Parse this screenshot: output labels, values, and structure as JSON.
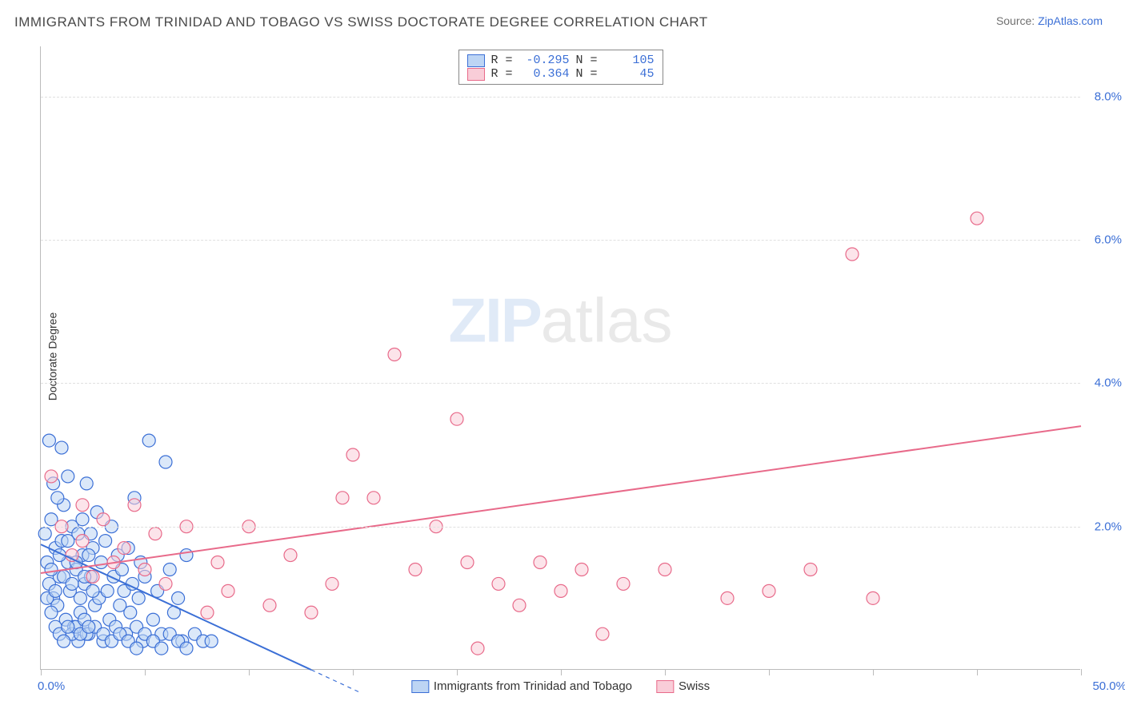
{
  "title": "IMMIGRANTS FROM TRINIDAD AND TOBAGO VS SWISS DOCTORATE DEGREE CORRELATION CHART",
  "source_prefix": "Source: ",
  "source_link": "ZipAtlas.com",
  "ylabel": "Doctorate Degree",
  "watermark_zip": "ZIP",
  "watermark_atlas": "atlas",
  "chart": {
    "type": "scatter",
    "background_color": "#ffffff",
    "grid_color": "#e0e0e0",
    "axis_color": "#bbbbbb",
    "tick_label_color": "#3b6fd6",
    "xlim": [
      0,
      50
    ],
    "ylim": [
      0,
      8.7
    ],
    "x_tick_step": 5,
    "x_min_label": "0.0%",
    "x_max_label": "50.0%",
    "y_ticks": [
      {
        "v": 2.0,
        "label": "2.0%"
      },
      {
        "v": 4.0,
        "label": "4.0%"
      },
      {
        "v": 6.0,
        "label": "6.0%"
      },
      {
        "v": 8.0,
        "label": "8.0%"
      }
    ],
    "marker_radius": 8,
    "marker_stroke_width": 1.2,
    "line_width": 2
  },
  "series": [
    {
      "key": "trinidad",
      "label": "Immigrants from Trinidad and Tobago",
      "R_label": "R =",
      "R": "-0.295",
      "N_label": "N =",
      "N": "105",
      "fill": "#bdd5f4",
      "stroke": "#3b6fd6",
      "fill_opacity": 0.55,
      "trend": {
        "x1": 0,
        "y1": 1.75,
        "x2": 13,
        "y2": 0,
        "dash_x2": 13,
        "dash_y2": 0
      },
      "points": [
        [
          0.2,
          1.9
        ],
        [
          0.3,
          1.5
        ],
        [
          0.4,
          1.2
        ],
        [
          0.5,
          2.1
        ],
        [
          0.6,
          1.0
        ],
        [
          0.7,
          1.7
        ],
        [
          0.8,
          0.9
        ],
        [
          0.9,
          1.3
        ],
        [
          1.0,
          1.8
        ],
        [
          1.1,
          2.3
        ],
        [
          1.2,
          0.7
        ],
        [
          1.3,
          1.5
        ],
        [
          1.4,
          1.1
        ],
        [
          1.5,
          2.0
        ],
        [
          1.6,
          0.6
        ],
        [
          1.7,
          1.4
        ],
        [
          1.8,
          1.9
        ],
        [
          1.9,
          0.8
        ],
        [
          2.0,
          1.6
        ],
        [
          2.1,
          1.2
        ],
        [
          2.2,
          2.6
        ],
        [
          2.3,
          0.5
        ],
        [
          2.4,
          1.3
        ],
        [
          2.5,
          1.7
        ],
        [
          2.6,
          0.9
        ],
        [
          2.7,
          2.2
        ],
        [
          2.8,
          1.0
        ],
        [
          2.9,
          1.5
        ],
        [
          3.0,
          0.4
        ],
        [
          3.1,
          1.8
        ],
        [
          3.2,
          1.1
        ],
        [
          3.3,
          0.7
        ],
        [
          3.4,
          2.0
        ],
        [
          3.5,
          1.3
        ],
        [
          3.6,
          0.6
        ],
        [
          3.7,
          1.6
        ],
        [
          3.8,
          0.9
        ],
        [
          3.9,
          1.4
        ],
        [
          4.0,
          1.1
        ],
        [
          4.1,
          0.5
        ],
        [
          4.2,
          1.7
        ],
        [
          4.3,
          0.8
        ],
        [
          4.4,
          1.2
        ],
        [
          4.5,
          2.4
        ],
        [
          4.6,
          0.6
        ],
        [
          4.7,
          1.0
        ],
        [
          4.8,
          1.5
        ],
        [
          4.9,
          0.4
        ],
        [
          5.0,
          1.3
        ],
        [
          5.2,
          3.2
        ],
        [
          5.4,
          0.7
        ],
        [
          5.6,
          1.1
        ],
        [
          5.8,
          0.5
        ],
        [
          6.0,
          2.9
        ],
        [
          6.2,
          1.4
        ],
        [
          6.4,
          0.8
        ],
        [
          6.6,
          1.0
        ],
        [
          6.8,
          0.4
        ],
        [
          7.0,
          1.6
        ],
        [
          1.0,
          3.1
        ],
        [
          1.3,
          2.7
        ],
        [
          0.4,
          3.2
        ],
        [
          0.6,
          2.6
        ],
        [
          0.8,
          2.4
        ],
        [
          2.0,
          2.1
        ],
        [
          2.4,
          1.9
        ],
        [
          1.8,
          0.4
        ],
        [
          2.2,
          0.5
        ],
        [
          2.6,
          0.6
        ],
        [
          3.0,
          0.5
        ],
        [
          3.4,
          0.4
        ],
        [
          3.8,
          0.5
        ],
        [
          4.2,
          0.4
        ],
        [
          4.6,
          0.3
        ],
        [
          5.0,
          0.5
        ],
        [
          5.4,
          0.4
        ],
        [
          5.8,
          0.3
        ],
        [
          6.2,
          0.5
        ],
        [
          6.6,
          0.4
        ],
        [
          7.0,
          0.3
        ],
        [
          7.4,
          0.5
        ],
        [
          7.8,
          0.4
        ],
        [
          8.2,
          0.4
        ],
        [
          1.5,
          0.5
        ],
        [
          1.7,
          0.6
        ],
        [
          1.9,
          0.5
        ],
        [
          2.1,
          0.7
        ],
        [
          2.3,
          0.6
        ],
        [
          0.5,
          0.8
        ],
        [
          0.7,
          0.6
        ],
        [
          0.9,
          0.5
        ],
        [
          1.1,
          0.4
        ],
        [
          1.3,
          0.6
        ],
        [
          0.3,
          1.0
        ],
        [
          0.5,
          1.4
        ],
        [
          0.7,
          1.1
        ],
        [
          0.9,
          1.6
        ],
        [
          1.1,
          1.3
        ],
        [
          1.3,
          1.8
        ],
        [
          1.5,
          1.2
        ],
        [
          1.7,
          1.5
        ],
        [
          1.9,
          1.0
        ],
        [
          2.1,
          1.3
        ],
        [
          2.3,
          1.6
        ],
        [
          2.5,
          1.1
        ]
      ]
    },
    {
      "key": "swiss",
      "label": "Swiss",
      "R_label": "R =",
      "R": "0.364",
      "N_label": "N =",
      "N": "45",
      "fill": "#f9cdd8",
      "stroke": "#e86a8a",
      "fill_opacity": 0.55,
      "trend": {
        "x1": 0,
        "y1": 1.35,
        "x2": 50,
        "y2": 3.4
      },
      "points": [
        [
          0.5,
          2.7
        ],
        [
          1.0,
          2.0
        ],
        [
          1.5,
          1.6
        ],
        [
          2.0,
          1.8
        ],
        [
          2.5,
          1.3
        ],
        [
          3.0,
          2.1
        ],
        [
          3.5,
          1.5
        ],
        [
          4.0,
          1.7
        ],
        [
          4.5,
          2.3
        ],
        [
          5.0,
          1.4
        ],
        [
          5.5,
          1.9
        ],
        [
          6.0,
          1.2
        ],
        [
          7.0,
          2.0
        ],
        [
          8.0,
          0.8
        ],
        [
          8.5,
          1.5
        ],
        [
          9.0,
          1.1
        ],
        [
          10.0,
          2.0
        ],
        [
          11.0,
          0.9
        ],
        [
          12.0,
          1.6
        ],
        [
          13.0,
          0.8
        ],
        [
          14.0,
          1.2
        ],
        [
          14.5,
          2.4
        ],
        [
          15.0,
          3.0
        ],
        [
          16.0,
          2.4
        ],
        [
          17.0,
          4.4
        ],
        [
          18.0,
          1.4
        ],
        [
          19.0,
          2.0
        ],
        [
          20.0,
          3.5
        ],
        [
          20.5,
          1.5
        ],
        [
          21.0,
          0.3
        ],
        [
          22.0,
          1.2
        ],
        [
          23.0,
          0.9
        ],
        [
          24.0,
          1.5
        ],
        [
          25.0,
          1.1
        ],
        [
          26.0,
          1.4
        ],
        [
          27.0,
          0.5
        ],
        [
          28.0,
          1.2
        ],
        [
          30.0,
          1.4
        ],
        [
          33.0,
          1.0
        ],
        [
          35.0,
          1.1
        ],
        [
          37.0,
          1.4
        ],
        [
          39.0,
          5.8
        ],
        [
          40.0,
          1.0
        ],
        [
          45.0,
          6.3
        ],
        [
          2.0,
          2.3
        ]
      ]
    }
  ]
}
